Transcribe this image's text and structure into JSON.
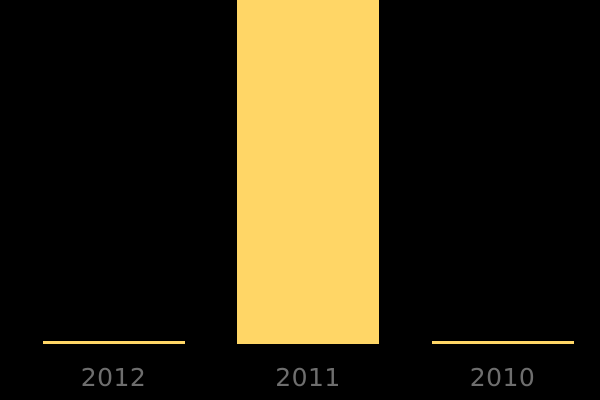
{
  "chart_data": {
    "type": "bar",
    "categories": [
      "2012",
      "2011",
      "2010"
    ],
    "values": [
      3,
      344,
      3
    ],
    "series": [
      {
        "name": "",
        "values": [
          3,
          344,
          3
        ]
      }
    ],
    "title": "",
    "xlabel": "",
    "ylabel": "",
    "ylim": [
      0,
      344
    ],
    "grid": false,
    "legend": false,
    "axis_lines_visible": false,
    "value_units": "pixels-estimated-no-axis-shown"
  },
  "colors": {
    "background": "#000000",
    "bar_fill": "#FFD666",
    "axis_label_text": "#6E6E6E"
  }
}
